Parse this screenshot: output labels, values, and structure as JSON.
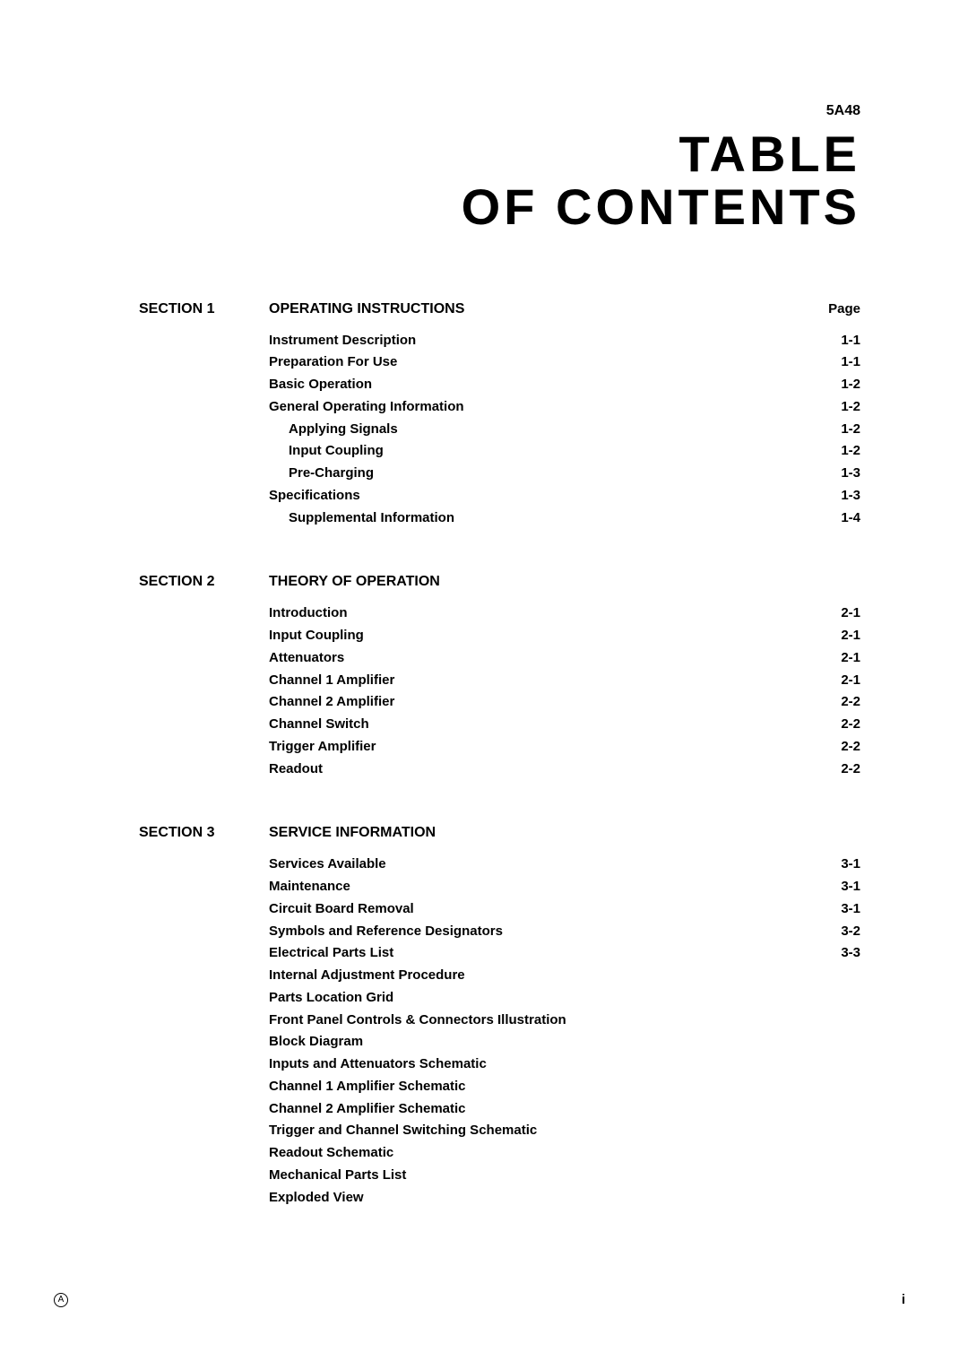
{
  "header_code": "5A48",
  "main_title_line1": "TABLE",
  "main_title_line2": "OF CONTENTS",
  "page_label": "Page",
  "sections": [
    {
      "label": "SECTION 1",
      "title": "OPERATING INSTRUCTIONS",
      "show_page_label": true,
      "entries": [
        {
          "text": "Instrument Description",
          "page": "1-1",
          "indent": 0
        },
        {
          "text": "Preparation For Use",
          "page": "1-1",
          "indent": 0
        },
        {
          "text": "Basic Operation",
          "page": "1-2",
          "indent": 0
        },
        {
          "text": "General Operating Information",
          "page": "1-2",
          "indent": 0
        },
        {
          "text": "Applying Signals",
          "page": "1-2",
          "indent": 1
        },
        {
          "text": "Input Coupling",
          "page": "1-2",
          "indent": 1
        },
        {
          "text": "Pre-Charging",
          "page": "1-3",
          "indent": 1
        },
        {
          "text": "Specifications",
          "page": "1-3",
          "indent": 0
        },
        {
          "text": "Supplemental Information",
          "page": "1-4",
          "indent": 1
        }
      ]
    },
    {
      "label": "SECTION 2",
      "title": "THEORY OF OPERATION",
      "show_page_label": false,
      "entries": [
        {
          "text": "Introduction",
          "page": "2-1",
          "indent": 0
        },
        {
          "text": "Input Coupling",
          "page": "2-1",
          "indent": 0
        },
        {
          "text": "Attenuators",
          "page": "2-1",
          "indent": 0
        },
        {
          "text": "Channel 1 Amplifier",
          "page": "2-1",
          "indent": 0
        },
        {
          "text": "Channel 2 Amplifier",
          "page": "2-2",
          "indent": 0
        },
        {
          "text": "Channel Switch",
          "page": "2-2",
          "indent": 0
        },
        {
          "text": "Trigger Amplifier",
          "page": "2-2",
          "indent": 0
        },
        {
          "text": "Readout",
          "page": "2-2",
          "indent": 0
        }
      ]
    },
    {
      "label": "SECTION 3",
      "title": "SERVICE INFORMATION",
      "show_page_label": false,
      "entries": [
        {
          "text": "Services Available",
          "page": "3-1",
          "indent": 0
        },
        {
          "text": "Maintenance",
          "page": "3-1",
          "indent": 0
        },
        {
          "text": "Circuit Board Removal",
          "page": "3-1",
          "indent": 0
        },
        {
          "text": "Symbols and Reference Designators",
          "page": "3-2",
          "indent": 0
        },
        {
          "text": "Electrical Parts List",
          "page": "3-3",
          "indent": 0
        },
        {
          "text": "Internal Adjustment Procedure",
          "page": "",
          "indent": 0
        },
        {
          "text": "Parts Location Grid",
          "page": "",
          "indent": 0
        },
        {
          "text": "Front Panel Controls & Connectors Illustration",
          "page": "",
          "indent": 0
        },
        {
          "text": "Block Diagram",
          "page": "",
          "indent": 0
        },
        {
          "text": "Inputs and Attenuators Schematic",
          "page": "",
          "indent": 0
        },
        {
          "text": "Channel 1 Amplifier Schematic",
          "page": "",
          "indent": 0
        },
        {
          "text": "Channel 2 Amplifier Schematic",
          "page": "",
          "indent": 0
        },
        {
          "text": "Trigger and Channel Switching Schematic",
          "page": "",
          "indent": 0
        },
        {
          "text": "Readout Schematic",
          "page": "",
          "indent": 0
        },
        {
          "text": "Mechanical Parts List",
          "page": "",
          "indent": 0
        },
        {
          "text": "Exploded View",
          "page": "",
          "indent": 0
        }
      ]
    }
  ],
  "footer_left": "A",
  "footer_right": "i"
}
